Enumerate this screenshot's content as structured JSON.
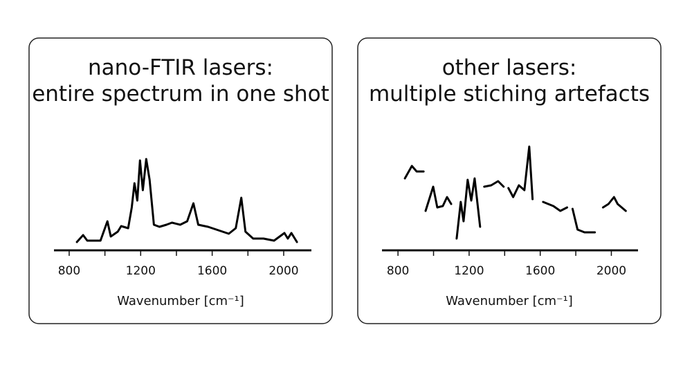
{
  "chart_data": [
    {
      "type": "line",
      "title_lines": [
        "nano-FTIR lasers:",
        "entire spectrum in one shot"
      ],
      "x_label": "Wavenumber [cm⁻¹]",
      "color": "#000000",
      "xlim": [
        715,
        2155
      ],
      "ylim": [
        0,
        160
      ],
      "xticks": [
        800,
        1200,
        1600,
        2000
      ],
      "x_minor_ticks": [
        1000,
        1400,
        1800
      ],
      "x": [
        843,
        878,
        901,
        975,
        1014,
        1033,
        1072,
        1091,
        1130,
        1150,
        1165,
        1181,
        1196,
        1212,
        1231,
        1250,
        1274,
        1305,
        1344,
        1375,
        1421,
        1460,
        1495,
        1522,
        1577,
        1693,
        1732,
        1763,
        1786,
        1829,
        1887,
        1946,
        2004,
        2023,
        2043,
        2074
      ],
      "values": [
        12,
        22,
        14,
        14,
        42,
        20,
        27,
        35,
        32,
        62,
        97,
        72,
        130,
        87,
        132,
        102,
        37,
        34,
        37,
        40,
        37,
        42,
        68,
        37,
        34,
        24,
        32,
        76,
        27,
        17,
        17,
        14,
        25,
        17,
        25,
        12
      ]
    },
    {
      "type": "line",
      "title_lines": [
        "other lasers:",
        "multiple stiching artefacts"
      ],
      "x_label": "Wavenumber [cm⁻¹]",
      "color": "#000000",
      "xlim": [
        710,
        2150
      ],
      "ylim": [
        0,
        160
      ],
      "xticks": [
        800,
        1200,
        1600,
        2000
      ],
      "x_minor_ticks": [
        1000,
        1400,
        1800
      ],
      "x": [
        839,
        878,
        905,
        944,
        null,
        955,
        998,
        1021,
        1052,
        1076,
        1099,
        null,
        1130,
        1153,
        1169,
        1192,
        1212,
        1231,
        1262,
        null,
        1285,
        1324,
        1363,
        1394,
        null,
        1421,
        1448,
        1480,
        1511,
        1538,
        1557,
        null,
        1616,
        1674,
        1713,
        1751,
        null,
        1782,
        1810,
        1849,
        1907,
        null,
        1953,
        1984,
        2015,
        2035,
        2081
      ],
      "values": [
        104,
        122,
        114,
        114,
        null,
        57,
        92,
        62,
        64,
        77,
        67,
        null,
        17,
        70,
        42,
        102,
        72,
        104,
        34,
        null,
        92,
        94,
        100,
        92,
        null,
        90,
        77,
        94,
        87,
        150,
        74,
        null,
        70,
        64,
        57,
        62,
        null,
        60,
        30,
        26,
        26,
        null,
        62,
        67,
        77,
        67,
        57
      ]
    }
  ]
}
